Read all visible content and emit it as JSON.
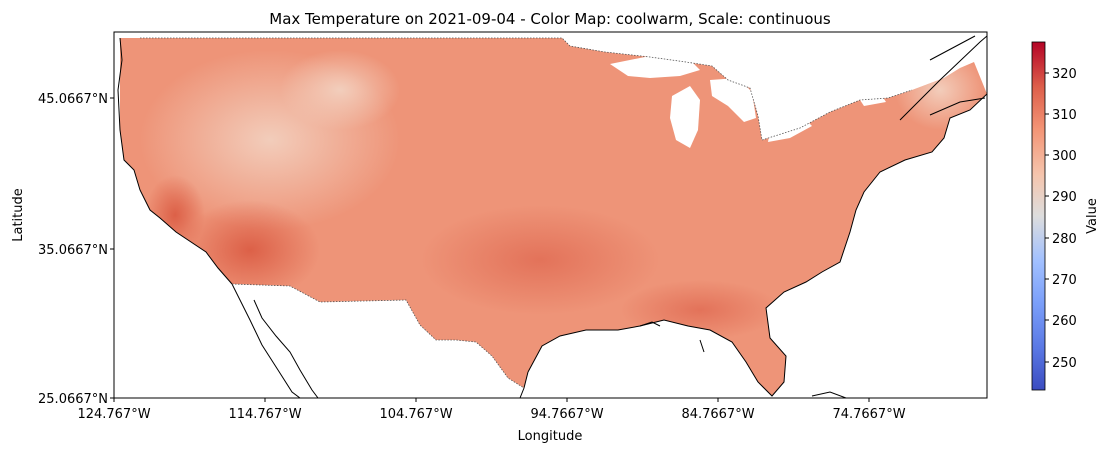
{
  "title": "Max Temperature on 2021-09-04 - Color Map: coolwarm, Scale: continuous",
  "xlabel": "Longitude",
  "ylabel": "Latitude",
  "x_ticks": [
    "124.767°W",
    "114.767°W",
    "104.767°W",
    "94.7667°W",
    "84.7667°W",
    "74.7667°W"
  ],
  "y_ticks": [
    "45.0667°N",
    "35.0667°N",
    "25.0667°N"
  ],
  "colorbar": {
    "label": "Value",
    "ticks": [
      "320",
      "310",
      "300",
      "290",
      "280",
      "270",
      "260",
      "250"
    ],
    "range": [
      243,
      328
    ]
  },
  "colors": {
    "land_warm": "#ee9478",
    "land_hot": "#e0684e",
    "land_cool": "#f2cbb7",
    "coolwarm_low": "#3b4cc0",
    "coolwarm_mid": "#dddddd",
    "coolwarm_high": "#b40426"
  }
}
